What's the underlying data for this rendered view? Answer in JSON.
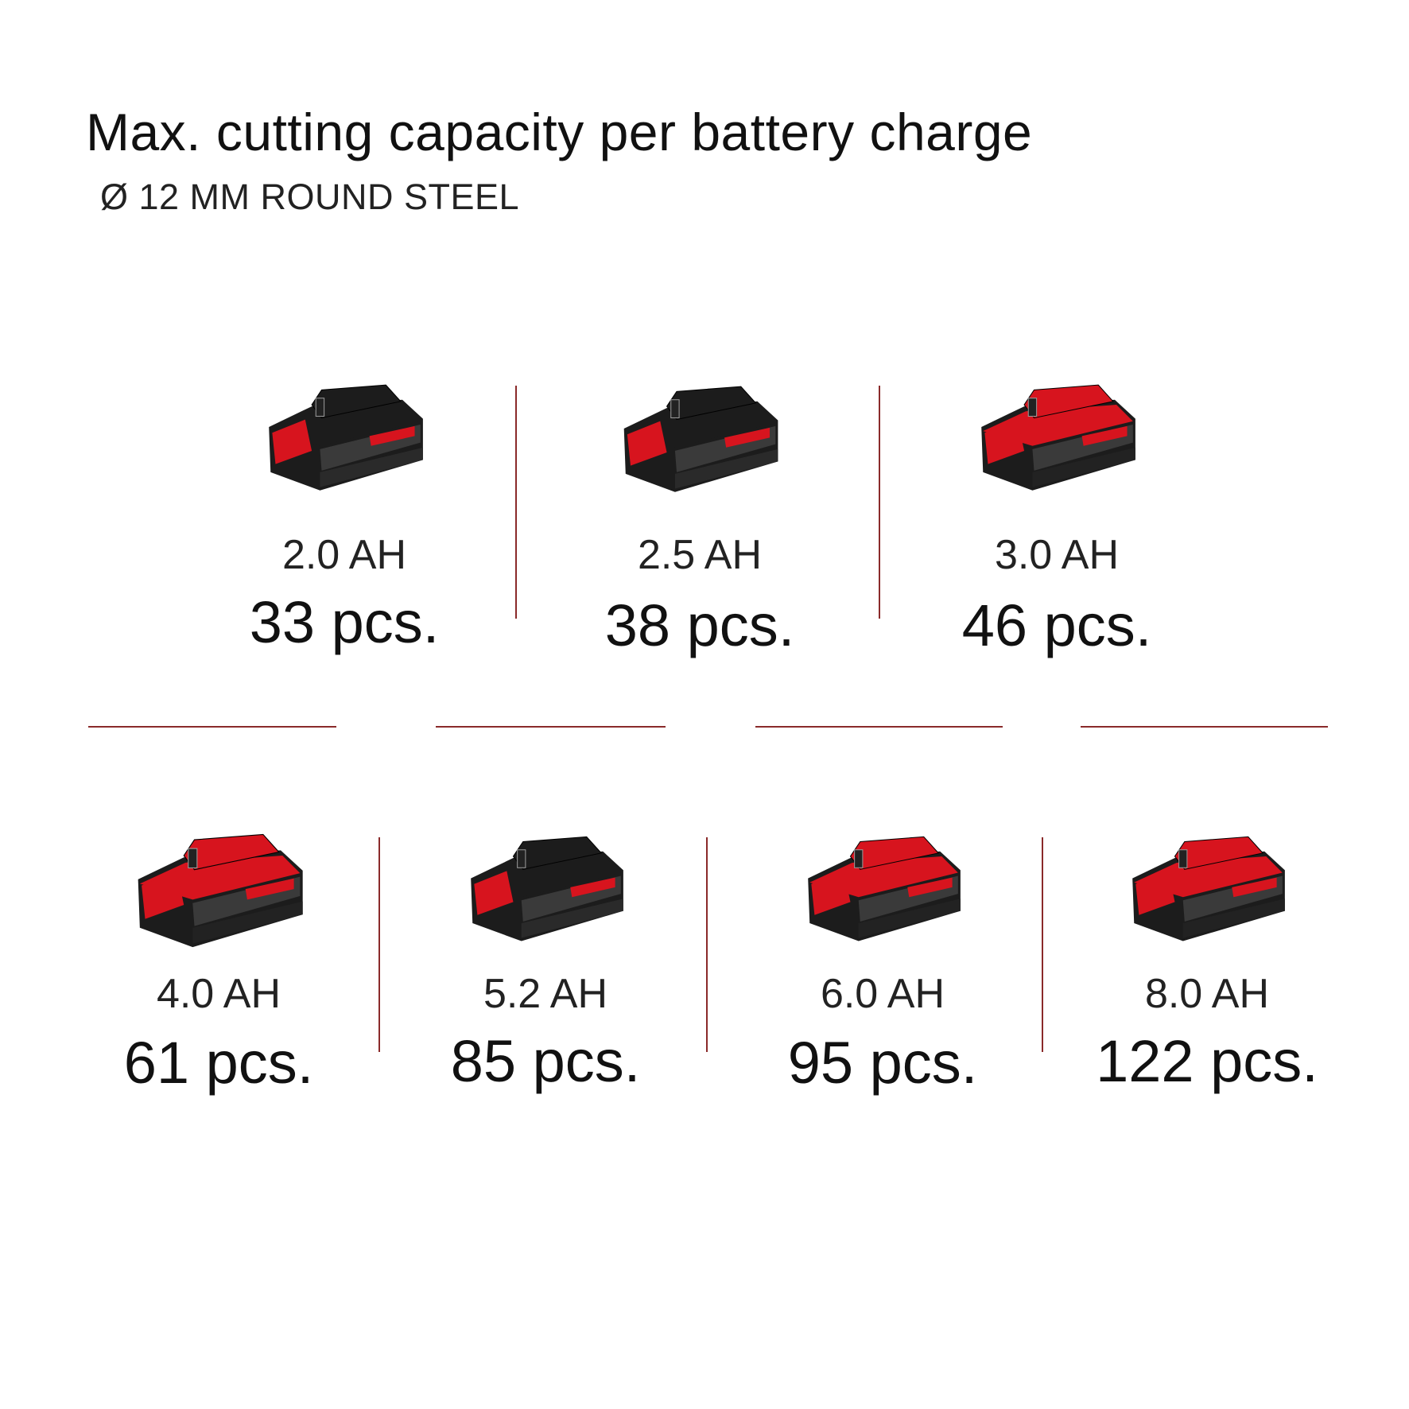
{
  "header": {
    "title": "Max. cutting capacity per battery charge",
    "subtitle": "Ø 12 MM ROUND STEEL"
  },
  "colors": {
    "accent": "#d7141e",
    "divider": "#8a2a2a",
    "battery_dark": "#1c1c1c"
  },
  "batteries": [
    {
      "capacity": "2.0 AH",
      "result": "33 pcs.",
      "body_color": "#1c1c1c",
      "icon": "battery-pack-icon"
    },
    {
      "capacity": "2.5 AH",
      "result": "38 pcs.",
      "body_color": "#1c1c1c",
      "icon": "battery-pack-icon"
    },
    {
      "capacity": "3.0 AH",
      "result": "46 pcs.",
      "body_color": "#d7141e",
      "icon": "battery-pack-icon"
    },
    {
      "capacity": "4.0 AH",
      "result": "61 pcs.",
      "body_color": "#d7141e",
      "icon": "battery-pack-icon"
    },
    {
      "capacity": "5.2 AH",
      "result": "85 pcs.",
      "body_color": "#1c1c1c",
      "icon": "battery-pack-icon"
    },
    {
      "capacity": "6.0 AH",
      "result": "95 pcs.",
      "body_color": "#d7141e",
      "icon": "battery-pack-icon"
    },
    {
      "capacity": "8.0 AH",
      "result": "122 pcs.",
      "body_color": "#d7141e",
      "icon": "battery-pack-icon"
    }
  ]
}
